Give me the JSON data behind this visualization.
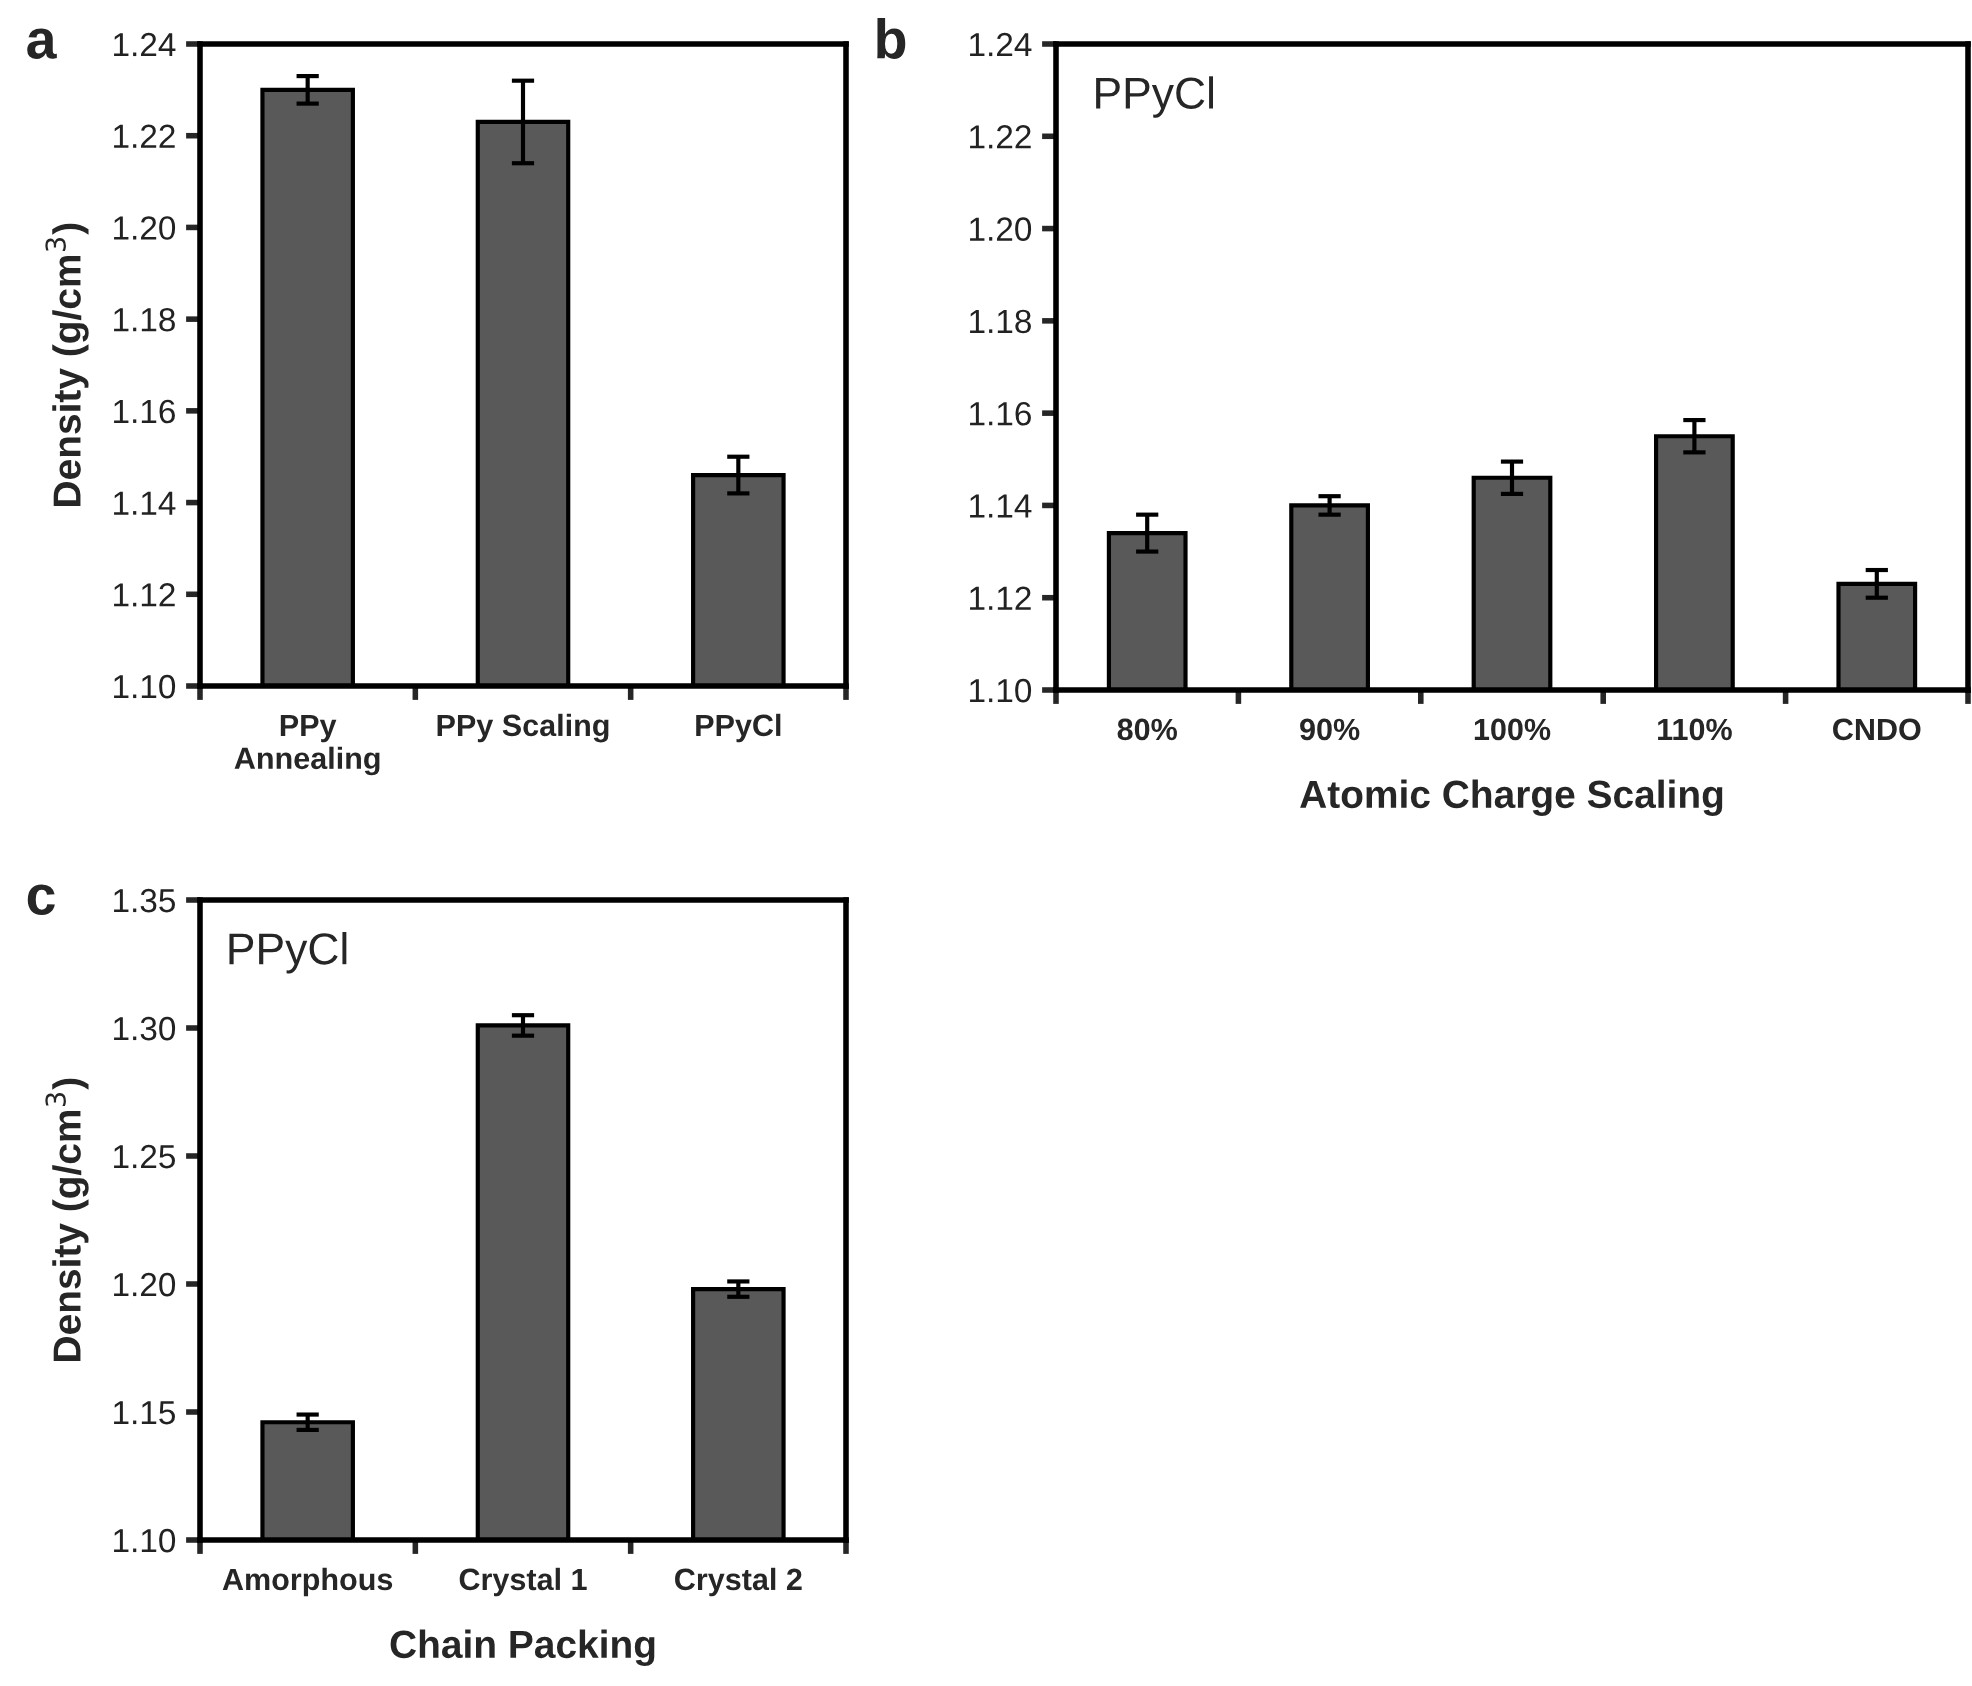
{
  "chart_data": [
    {
      "type": "bar",
      "title": "a",
      "ylabel": "Density (g/cm$^{3}$)",
      "categories": [
        "PPy\nAnnealing",
        "PPy Scaling",
        "PPyCl"
      ],
      "series": [
        {
          "color": "#595959",
          "values": [
            1.23,
            1.223,
            1.146
          ],
          "errors": [
            0.003,
            0.009,
            0.004
          ]
        }
      ],
      "ylim": [
        1.1,
        1.24
      ],
      "yticks": [
        {
          "value": 1.1,
          "label": "1.10"
        },
        {
          "value": 1.12,
          "label": "1.12"
        },
        {
          "value": 1.14,
          "label": "1.14"
        },
        {
          "value": 1.16,
          "label": "1.16"
        },
        {
          "value": 1.18,
          "label": "1.18"
        },
        {
          "value": 1.2,
          "label": "1.20"
        },
        {
          "value": 1.22,
          "label": "1.22"
        },
        {
          "value": 1.24,
          "label": "1.24"
        }
      ],
      "grid": false,
      "legend": false
    },
    {
      "type": "bar",
      "title": "b",
      "xlabel": "Atomic Charge Scaling",
      "annotations": [
        "PPyCl"
      ],
      "categories": [
        "80%",
        "90%",
        "100%",
        "110%",
        "CNDO"
      ],
      "series": [
        {
          "color": "#595959",
          "values": [
            1.134,
            1.14,
            1.146,
            1.155,
            1.123
          ],
          "errors": [
            0.004,
            0.002,
            0.0035,
            0.0035,
            0.003
          ]
        }
      ],
      "ylim": [
        1.1,
        1.24
      ],
      "yticks": [
        {
          "value": 1.1,
          "label": "1.10"
        },
        {
          "value": 1.12,
          "label": "1.12"
        },
        {
          "value": 1.14,
          "label": "1.14"
        },
        {
          "value": 1.16,
          "label": "1.16"
        },
        {
          "value": 1.18,
          "label": "1.18"
        },
        {
          "value": 1.2,
          "label": "1.20"
        },
        {
          "value": 1.22,
          "label": "1.22"
        },
        {
          "value": 1.24,
          "label": "1.24"
        }
      ],
      "grid": false,
      "legend": false
    },
    {
      "type": "bar",
      "title": "c",
      "xlabel": "Chain Packing",
      "ylabel": "Density (g/cm$^{3}$)",
      "annotations": [
        "PPyCl"
      ],
      "categories": [
        "Amorphous",
        "Crystal 1",
        "Crystal 2"
      ],
      "series": [
        {
          "color": "#595959",
          "values": [
            1.146,
            1.301,
            1.198
          ],
          "errors": [
            0.003,
            0.004,
            0.003
          ]
        }
      ],
      "ylim": [
        1.1,
        1.35
      ],
      "yticks": [
        {
          "value": 1.1,
          "label": "1.10"
        },
        {
          "value": 1.15,
          "label": "1.15"
        },
        {
          "value": 1.2,
          "label": "1.20"
        },
        {
          "value": 1.25,
          "label": "1.25"
        },
        {
          "value": 1.3,
          "label": "1.30"
        },
        {
          "value": 1.35,
          "label": "1.35"
        }
      ],
      "grid": false,
      "legend": false
    }
  ]
}
